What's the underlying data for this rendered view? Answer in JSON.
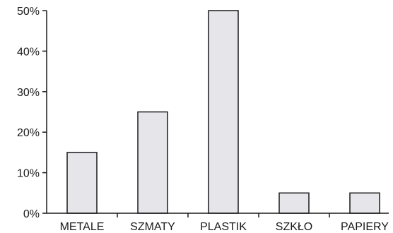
{
  "chart_data": {
    "type": "bar",
    "title": "",
    "xlabel": "",
    "ylabel": "",
    "categories": [
      "METALE",
      "SZMATY",
      "PLASTIK",
      "SZKŁO",
      "PAPIERY"
    ],
    "values": [
      15,
      25,
      50,
      5,
      5
    ],
    "ylim": [
      0,
      50
    ],
    "yticks": [
      0,
      10,
      20,
      30,
      40,
      50
    ],
    "ytick_labels": [
      "0%",
      "10%",
      "20%",
      "30%",
      "40%",
      "50%"
    ],
    "grid": false,
    "legend": "none",
    "colors": {
      "bar_fill": "#e6e6ea",
      "bar_stroke": "#1a1a1a",
      "axis": "#1a1a1a"
    }
  }
}
